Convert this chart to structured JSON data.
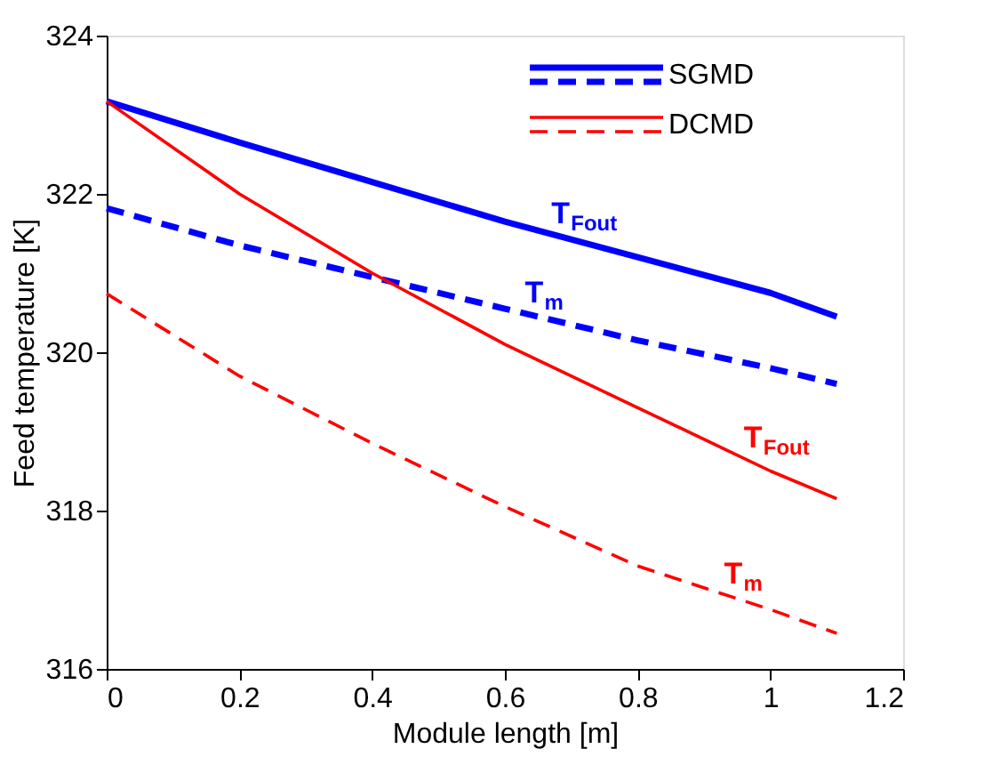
{
  "chart_data": {
    "type": "line",
    "xlabel": "Module length [m]",
    "ylabel": "Feed temperature [K]",
    "xlim": [
      0,
      1.2
    ],
    "xticks": [
      {
        "value": 0,
        "label": "0"
      },
      0.2,
      0.4,
      0.6,
      0.8,
      {
        "value": 1,
        "label": "1"
      },
      1.2
    ],
    "ylim": [
      316,
      324
    ],
    "yticks": [
      316,
      318,
      320,
      322,
      324
    ],
    "grid": false,
    "legend": "top right",
    "marker": "none",
    "series": [
      {
        "name": "SGMD",
        "color": "#0000ff",
        "line_style": "solid",
        "x": [
          0,
          0.2,
          0.4,
          0.6,
          0.8,
          1.0,
          1.1
        ],
        "values": [
          323.17,
          322.65,
          322.15,
          321.65,
          321.2,
          320.75,
          320.45
        ]
      },
      {
        "color": "#0000ff",
        "line_style": "dashed",
        "x": [
          0,
          0.2,
          0.4,
          0.6,
          0.8,
          1.0,
          1.1
        ],
        "values": [
          321.82,
          321.35,
          320.95,
          320.55,
          320.15,
          319.8,
          319.6
        ]
      },
      {
        "name": "DCMD",
        "color": "#ff0000",
        "line_style": "solid",
        "x": [
          0,
          0.2,
          0.4,
          0.6,
          0.8,
          1.0,
          1.1
        ],
        "values": [
          323.17,
          322.0,
          321.0,
          320.1,
          319.3,
          318.5,
          318.15
        ]
      },
      {
        "color": "#ff0000",
        "line_style": "dashed",
        "x": [
          0,
          0.2,
          0.4,
          0.6,
          0.8,
          1.0,
          1.1
        ],
        "values": [
          320.74,
          319.7,
          318.85,
          318.05,
          317.3,
          316.75,
          316.45
        ]
      }
    ],
    "annotations": [
      {
        "text": "T$_{Fout}$",
        "x": 0.67,
        "y": 321.49
      },
      {
        "text": "T$_{m}$",
        "x": 0.63,
        "y": 320.49
      },
      {
        "text": "T$_{Fout}$",
        "x": 0.96,
        "y": 318.66
      },
      {
        "text": "T$_{m}$",
        "x": 0.93,
        "y": 316.94
      }
    ]
  }
}
